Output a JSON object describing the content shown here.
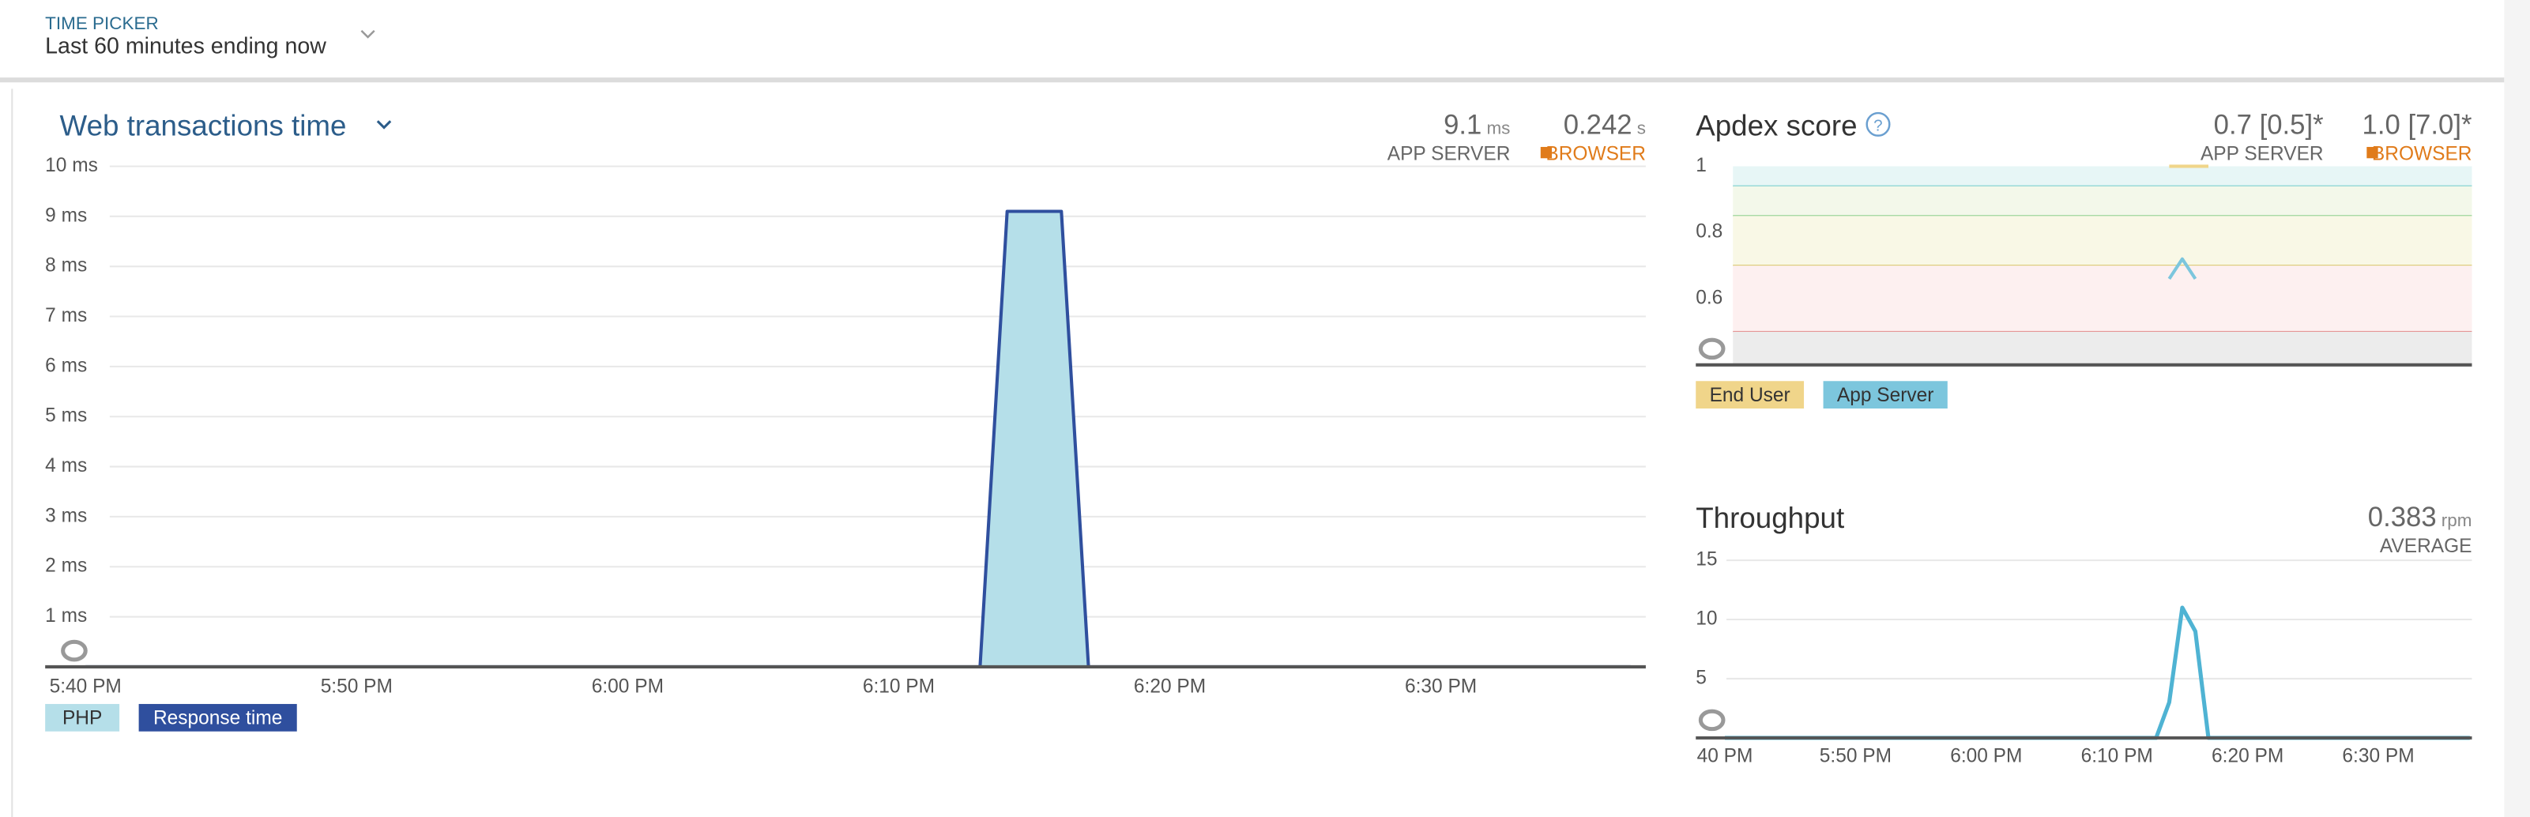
{
  "header": {
    "label": "TIME PICKER",
    "value": "Last 60 minutes ending now"
  },
  "chart_data": [
    {
      "type": "area",
      "title": "Web transactions time",
      "summary": [
        {
          "value": "9.1",
          "unit": "ms",
          "label": "APP SERVER"
        },
        {
          "value": "0.242",
          "unit": "s",
          "label": "BROWSER"
        }
      ],
      "categories": [
        "5:40 PM",
        null,
        null,
        null,
        null,
        null,
        null,
        null,
        null,
        null,
        "5:50 PM",
        null,
        null,
        null,
        null,
        null,
        null,
        null,
        null,
        null,
        "6:00 PM",
        null,
        null,
        null,
        null,
        null,
        null,
        null,
        null,
        null,
        "6:10 PM",
        null,
        null,
        null,
        null,
        null,
        null,
        null,
        null,
        null,
        "6:20 PM",
        null,
        null,
        null,
        null,
        null,
        null,
        null,
        null,
        null,
        "6:30 PM",
        null,
        null,
        null,
        null,
        null,
        null,
        null
      ],
      "series": [
        {
          "name": "PHP",
          "type": "area",
          "color": "#b5dfe9",
          "values": [
            0,
            0,
            0,
            0,
            0,
            0,
            0,
            0,
            0,
            0,
            0,
            0,
            0,
            0,
            0,
            0,
            0,
            0,
            0,
            0,
            0,
            0,
            0,
            0,
            0,
            0,
            0,
            0,
            0,
            0,
            0,
            0,
            0,
            0,
            9.1,
            9.1,
            9.1,
            0,
            0,
            0,
            0,
            0,
            0,
            0,
            0,
            0,
            0,
            0,
            0,
            0,
            0,
            0,
            0,
            0,
            0,
            0,
            0,
            0
          ]
        },
        {
          "name": "Response time",
          "type": "line",
          "color": "#2f4f9e",
          "values": [
            0,
            0,
            0,
            0,
            0,
            0,
            0,
            0,
            0,
            0,
            0,
            0,
            0,
            0,
            0,
            0,
            0,
            0,
            0,
            0,
            0,
            0,
            0,
            0,
            0,
            0,
            0,
            0,
            0,
            0,
            0,
            0,
            0,
            0,
            9.1,
            9.1,
            9.1,
            0,
            0,
            0,
            0,
            0,
            0,
            0,
            0,
            0,
            0,
            0,
            0,
            0,
            0,
            0,
            0,
            0,
            0,
            0,
            0,
            0
          ]
        }
      ],
      "ylim": [
        0,
        10
      ],
      "yticks": [
        {
          "value": 1,
          "label": "1 ms"
        },
        {
          "value": 2,
          "label": "2 ms"
        },
        {
          "value": 3,
          "label": "3 ms"
        },
        {
          "value": 4,
          "label": "4 ms"
        },
        {
          "value": 5,
          "label": "5 ms"
        },
        {
          "value": 6,
          "label": "6 ms"
        },
        {
          "value": 7,
          "label": "7 ms"
        },
        {
          "value": 8,
          "label": "8 ms"
        },
        {
          "value": 9,
          "label": "9 ms"
        },
        {
          "value": 10,
          "label": "10 ms"
        }
      ],
      "grid": true
    },
    {
      "type": "line",
      "title": "Apdex score",
      "summary": [
        {
          "value": "0.7 [0.5]*",
          "label": "APP SERVER"
        },
        {
          "value": "1.0 [7.0]*",
          "label": "BROWSER"
        }
      ],
      "bands": [
        {
          "from": 0.94,
          "to": 1,
          "fill": "#e7f6f6",
          "line": "#6ccaca"
        },
        {
          "from": 0.85,
          "to": 0.94,
          "fill": "#f3f8ea",
          "line": "#8fcf8f"
        },
        {
          "from": 0.7,
          "to": 0.85,
          "fill": "#f9f8e6",
          "line": "#d9c66a"
        },
        {
          "from": 0.5,
          "to": 0.7,
          "fill": "#fdf0f0",
          "line": "#e39090"
        },
        {
          "from": 0.4,
          "to": 0.5,
          "fill": "#ececec"
        }
      ],
      "series": [
        {
          "name": "End User",
          "type": "line",
          "color": "#f0d58a",
          "values": [
            null,
            null,
            null,
            null,
            null,
            null,
            null,
            null,
            null,
            null,
            null,
            null,
            null,
            null,
            null,
            null,
            null,
            null,
            null,
            null,
            null,
            null,
            null,
            null,
            null,
            null,
            null,
            null,
            null,
            null,
            null,
            null,
            null,
            null,
            1,
            1,
            1,
            1,
            null,
            null,
            null,
            null,
            null,
            null,
            null,
            null,
            null,
            null,
            null,
            null,
            null,
            null,
            null,
            null,
            null,
            null,
            null,
            null
          ]
        },
        {
          "name": "App Server",
          "type": "line",
          "color": "#7cc6dd",
          "values": [
            null,
            null,
            null,
            null,
            null,
            null,
            null,
            null,
            null,
            null,
            null,
            null,
            null,
            null,
            null,
            null,
            null,
            null,
            null,
            null,
            null,
            null,
            null,
            null,
            null,
            null,
            null,
            null,
            null,
            null,
            null,
            null,
            null,
            null,
            0.66,
            0.72,
            0.66,
            null,
            null,
            null,
            null,
            null,
            null,
            null,
            null,
            null,
            null,
            null,
            null,
            null,
            null,
            null,
            null,
            null,
            null,
            null,
            null,
            null
          ]
        }
      ],
      "ylim": [
        0.4,
        1
      ],
      "yticks": [
        0.6,
        0.8,
        1
      ],
      "grid": false
    },
    {
      "type": "line",
      "title": "Throughput",
      "summary": [
        {
          "value": "0.383",
          "unit": "rpm",
          "label": "AVERAGE"
        }
      ],
      "categories": [
        "40 PM",
        null,
        null,
        null,
        null,
        null,
        null,
        null,
        null,
        null,
        "5:50 PM",
        null,
        null,
        null,
        null,
        null,
        null,
        null,
        null,
        null,
        "6:00 PM",
        null,
        null,
        null,
        null,
        null,
        null,
        null,
        null,
        null,
        "6:10 PM",
        null,
        null,
        null,
        null,
        null,
        null,
        null,
        null,
        null,
        "6:20 PM",
        null,
        null,
        null,
        null,
        null,
        null,
        null,
        null,
        null,
        "6:30 PM",
        null,
        null,
        null,
        null,
        null,
        null,
        null
      ],
      "series": [
        {
          "name": "Throughput",
          "type": "line",
          "color": "#4fb3d3",
          "values": [
            0,
            0,
            0,
            0,
            0,
            0,
            0,
            0,
            0,
            0,
            0,
            0,
            0,
            0,
            0,
            0,
            0,
            0,
            0,
            0,
            0,
            0,
            0,
            0,
            0,
            0,
            0,
            0,
            0,
            0,
            0,
            0,
            0,
            0,
            3,
            11,
            9,
            0,
            0,
            0,
            0,
            0,
            0,
            0,
            0,
            0,
            0,
            0,
            0,
            0,
            0,
            0,
            0,
            0,
            0,
            0,
            0,
            0
          ]
        }
      ],
      "ylim": [
        0,
        15
      ],
      "yticks": [
        5,
        10,
        15
      ],
      "grid": true
    }
  ]
}
